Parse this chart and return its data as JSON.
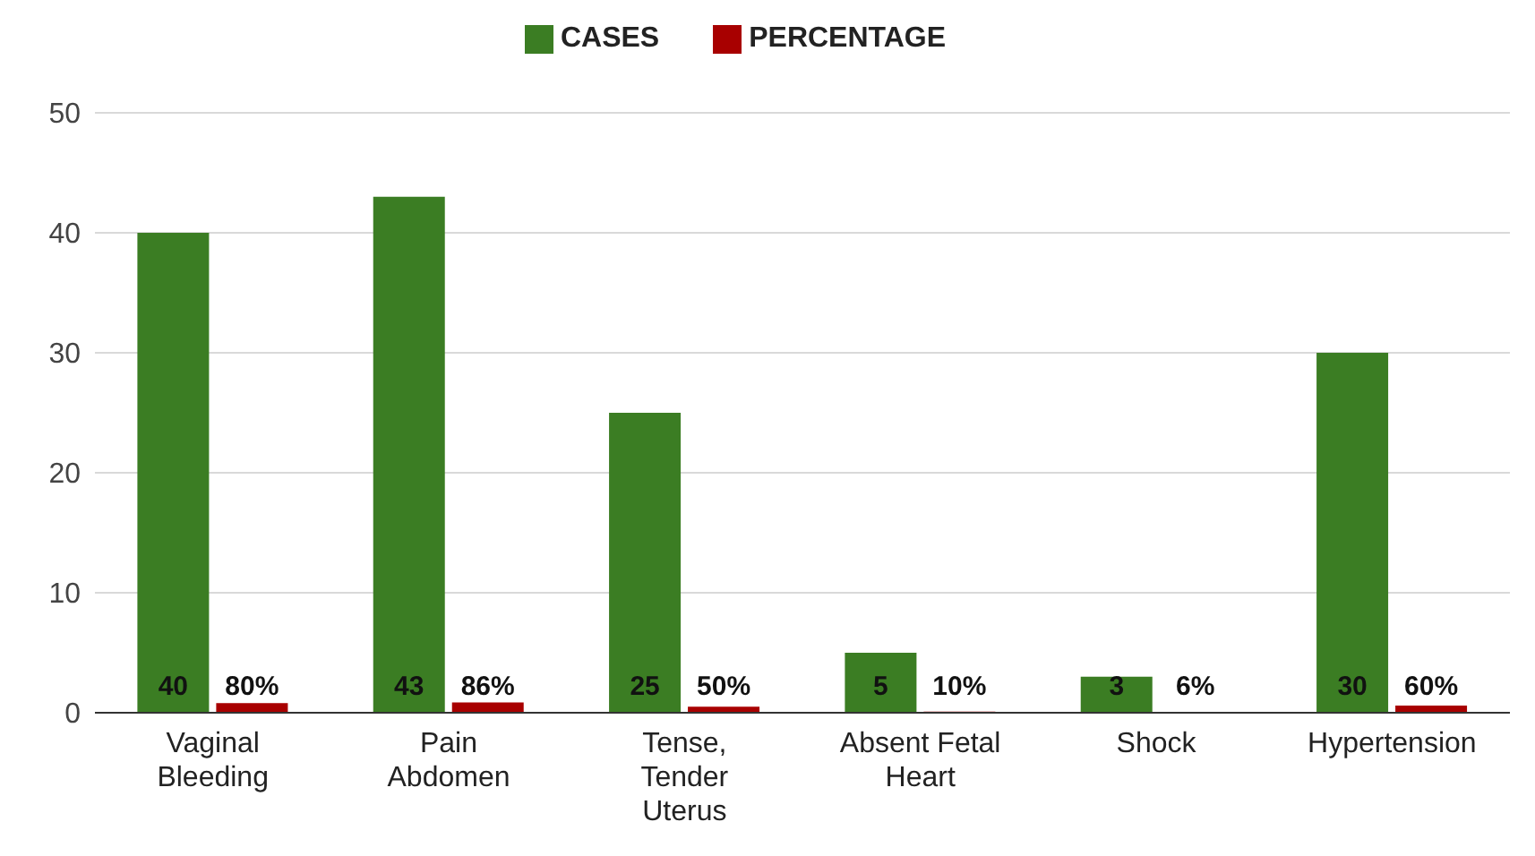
{
  "chart_data": {
    "type": "bar",
    "categories": [
      "Vaginal Bleeding",
      "Pain Abdomen",
      "Tense, Tender Uterus",
      "Absent Fetal Heart",
      "Shock",
      "Hypertension"
    ],
    "series": [
      {
        "name": "CASES",
        "color": "#3b7d23",
        "values": [
          40,
          43,
          25,
          5,
          3,
          30
        ],
        "value_labels": [
          "40",
          "43",
          "25",
          "5",
          "3",
          "30"
        ]
      },
      {
        "name": "PERCENTAGE",
        "color": "#a80000",
        "values": [
          0.8,
          0.86,
          0.5,
          0.1,
          0.06,
          0.6
        ],
        "value_labels": [
          "80%",
          "86%",
          "50%",
          "10%",
          "6%",
          "60%"
        ]
      }
    ],
    "ylim": [
      0,
      50
    ],
    "yticks": [
      0,
      10,
      20,
      30,
      40,
      50
    ],
    "grid": "y",
    "legend": "top"
  }
}
